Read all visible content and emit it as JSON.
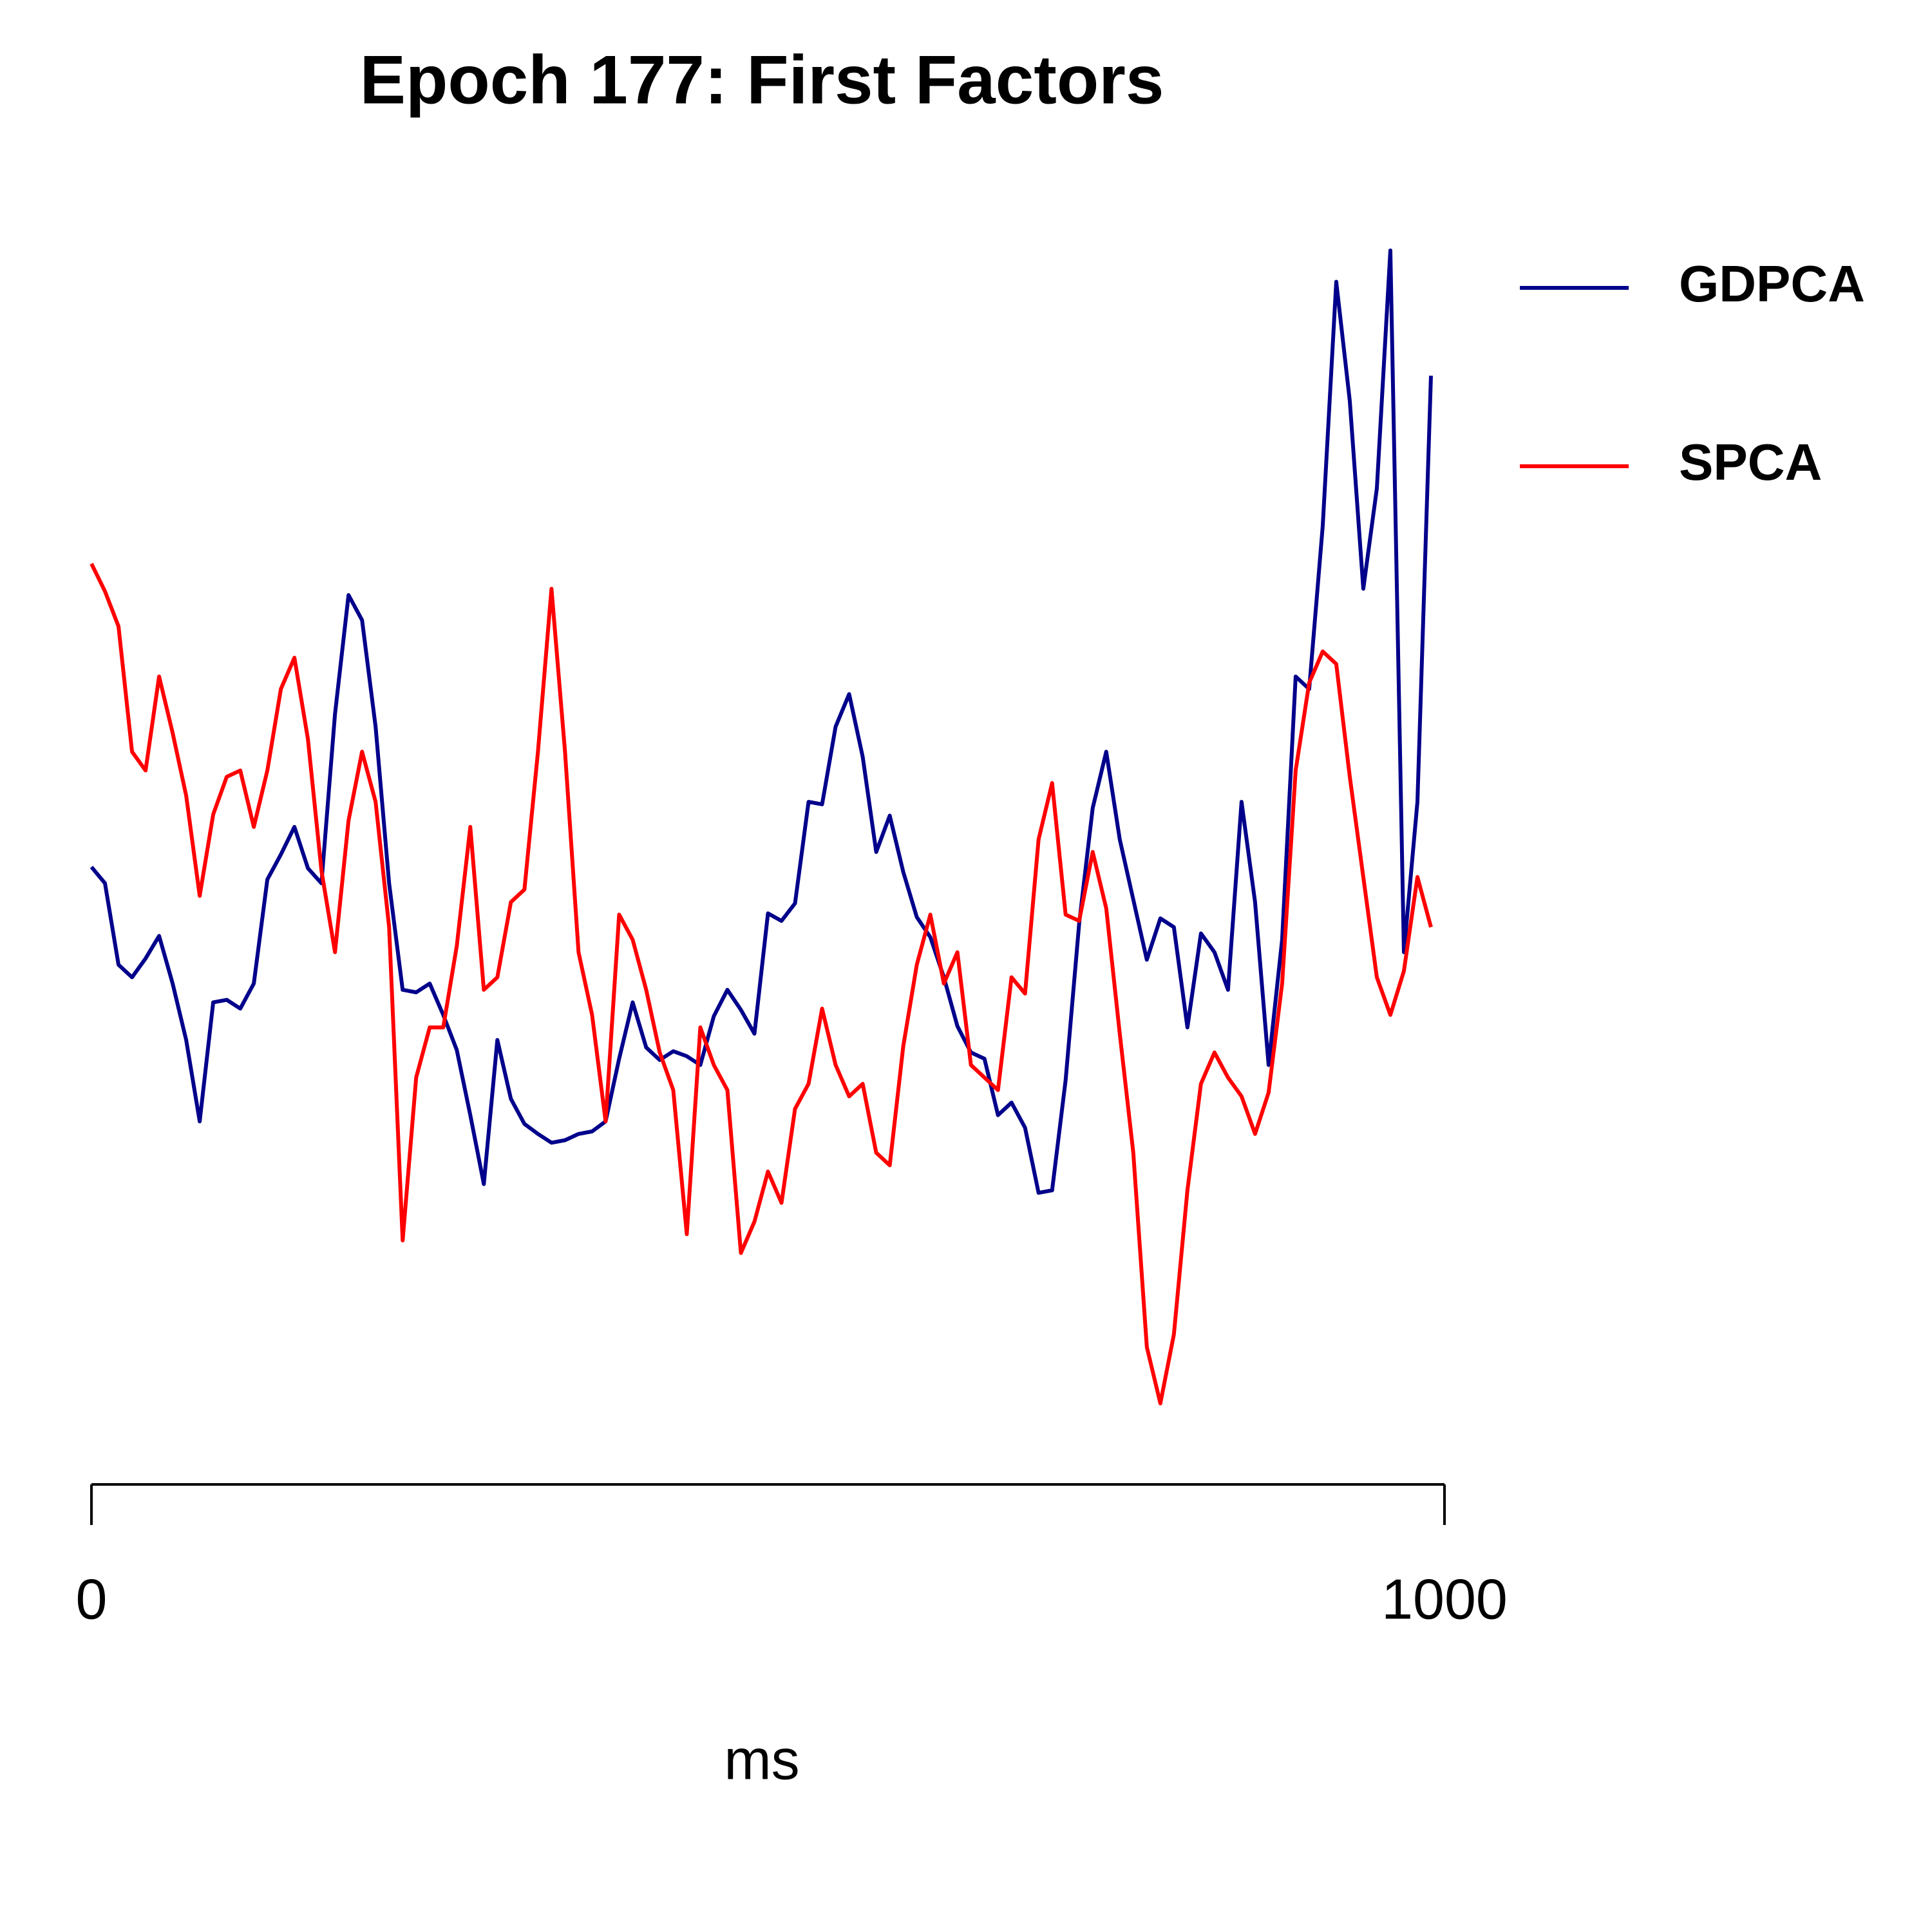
{
  "chart_data": {
    "type": "line",
    "title": "Epoch 177: First Factors",
    "x_label": "ms",
    "x": [
      0,
      10,
      20,
      30,
      40,
      50,
      60,
      70,
      80,
      90,
      100,
      110,
      120,
      130,
      140,
      150,
      160,
      170,
      180,
      190,
      200,
      210,
      220,
      230,
      240,
      250,
      260,
      270,
      280,
      290,
      300,
      310,
      320,
      330,
      340,
      350,
      360,
      370,
      380,
      390,
      400,
      410,
      420,
      430,
      440,
      450,
      460,
      470,
      480,
      490,
      500,
      510,
      520,
      530,
      540,
      550,
      560,
      570,
      580,
      590,
      600,
      610,
      620,
      630,
      640,
      650,
      660,
      670,
      680,
      690,
      700,
      710,
      720,
      730,
      740,
      750,
      760,
      770,
      780,
      790,
      800,
      810,
      820,
      830,
      840,
      850,
      860,
      870,
      880,
      890,
      900,
      910,
      920,
      930,
      940,
      950,
      960,
      970,
      980,
      990
    ],
    "xlim": [
      0,
      1000
    ],
    "xticks": [
      0,
      1000
    ],
    "ylim": [
      -4.6,
      5.4
    ],
    "series": [
      {
        "name": "GDPCA",
        "color": "#00008b",
        "values": [
          0.08,
          -0.05,
          -0.7,
          -0.8,
          -0.65,
          -0.47,
          -0.85,
          -1.3,
          -1.95,
          -1,
          -0.98,
          -1.05,
          -0.85,
          -0.02,
          0.18,
          0.4,
          0.07,
          -0.05,
          1.3,
          2.25,
          2.05,
          1.2,
          -0.05,
          -0.9,
          -0.92,
          -0.85,
          -1.1,
          -1.38,
          -1.9,
          -2.45,
          -1.3,
          -1.77,
          -1.97,
          -2.05,
          -2.12,
          -2.1,
          -2.05,
          -2.03,
          -1.95,
          -1.45,
          -1,
          -1.36,
          -1.46,
          -1.39,
          -1.43,
          -1.5,
          -1.11,
          -0.9,
          -1.06,
          -1.25,
          -0.29,
          -0.35,
          -0.21,
          0.6,
          0.58,
          1.2,
          1.46,
          0.96,
          0.2,
          0.49,
          0.04,
          -0.32,
          -0.48,
          -0.8,
          -1.19,
          -1.4,
          -1.45,
          -1.9,
          -1.8,
          -2,
          -2.52,
          -2.5,
          -1.62,
          -0.37,
          0.55,
          1,
          0.3,
          -0.18,
          -0.66,
          -0.33,
          -0.4,
          -1.2,
          -0.45,
          -0.6,
          -0.9,
          0.6,
          -0.2,
          -1.5,
          -0.5,
          1.6,
          1.5,
          2.8,
          4.75,
          3.8,
          2.3,
          3.1,
          5,
          -0.6,
          0.6,
          4
        ]
      },
      {
        "name": "SPCA",
        "color": "#ff0000",
        "values": [
          2.5,
          2.28,
          2,
          1,
          0.85,
          1.6,
          1.15,
          0.65,
          -0.15,
          0.5,
          0.8,
          0.85,
          0.4,
          0.85,
          1.5,
          1.75,
          1.1,
          0.05,
          -0.6,
          0.45,
          1,
          0.6,
          -0.4,
          -2.9,
          -1.6,
          -1.2,
          -1.2,
          -0.55,
          0.4,
          -0.9,
          -0.8,
          -0.2,
          -0.1,
          1,
          2.3,
          1,
          -0.6,
          -1.1,
          -1.95,
          -0.3,
          -0.5,
          -0.9,
          -1.4,
          -1.7,
          -2.85,
          -1.2,
          -1.5,
          -1.7,
          -3,
          -2.75,
          -2.35,
          -2.6,
          -1.85,
          -1.65,
          -1.05,
          -1.5,
          -1.75,
          -1.65,
          -2.2,
          -2.3,
          -1.35,
          -0.7,
          -0.3,
          -0.85,
          -0.6,
          -1.5,
          -1.6,
          -1.7,
          -0.8,
          -0.93,
          0.3,
          0.75,
          -0.3,
          -0.35,
          0.2,
          -0.25,
          -1.25,
          -2.2,
          -3.75,
          -4.2,
          -3.65,
          -2.5,
          -1.65,
          -1.4,
          -1.6,
          -1.75,
          -2.05,
          -1.72,
          -0.85,
          0.85,
          1.55,
          1.8,
          1.7,
          0.8,
          0,
          -0.8,
          -1.1,
          -0.75,
          0,
          -0.4
        ]
      }
    ]
  }
}
